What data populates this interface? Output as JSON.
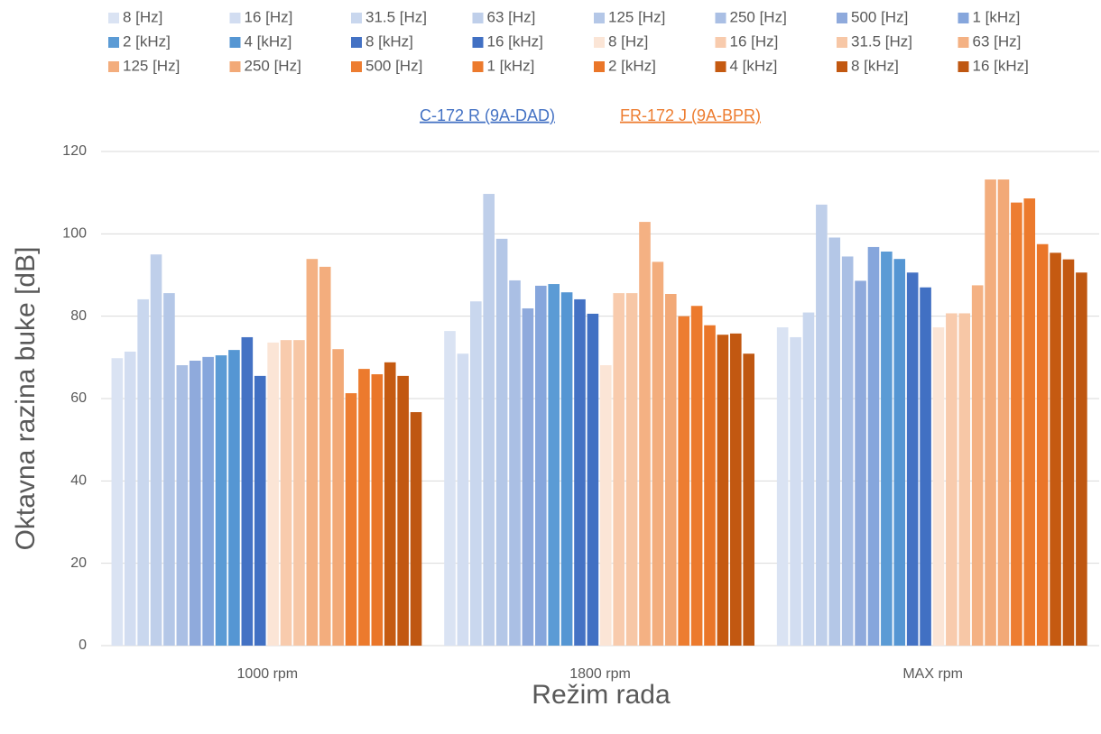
{
  "chart_data": {
    "type": "bar",
    "y_label": "Oktavna razina buke [dB]",
    "x_label": "Režim rada",
    "annotations": [
      {
        "text": "C-172 R (9A-DAD)",
        "color": "#4472c4"
      },
      {
        "text": "FR-172 J (9A-BPR)",
        "color": "#ed7d31"
      }
    ],
    "categories": [
      "1000 rpm",
      "1800 rpm",
      "MAX rpm"
    ],
    "ylim": [
      0,
      120
    ],
    "yticks": [
      0,
      20,
      40,
      60,
      80,
      100,
      120
    ],
    "grid": true,
    "series": [
      {
        "name": "8 [Hz]",
        "color": "#dae3f3",
        "values": [
          69.8,
          76.4,
          77.3
        ]
      },
      {
        "name": "16 [Hz]",
        "color": "#d2ddf1",
        "values": [
          71.4,
          70.9,
          74.9
        ]
      },
      {
        "name": "31.5 [Hz]",
        "color": "#c9d7ee",
        "values": [
          84.1,
          83.6,
          80.9
        ]
      },
      {
        "name": "63 [Hz]",
        "color": "#bfcfea",
        "values": [
          95.0,
          109.7,
          107.1
        ]
      },
      {
        "name": "125 [Hz]",
        "color": "#b4c7e7",
        "values": [
          85.6,
          98.8,
          99.1
        ]
      },
      {
        "name": "250 [Hz]",
        "color": "#aabfe4",
        "values": [
          68.1,
          88.7,
          94.5
        ]
      },
      {
        "name": "500 [Hz]",
        "color": "#8faadc",
        "values": [
          69.2,
          81.9,
          88.6
        ]
      },
      {
        "name": "1 [kHz]",
        "color": "#86a6dc",
        "values": [
          70.1,
          87.4,
          96.8
        ]
      },
      {
        "name": "2 [kHz]",
        "color": "#5b9bd5",
        "values": [
          70.5,
          87.8,
          95.7
        ]
      },
      {
        "name": "4 [kHz]",
        "color": "#5596d3",
        "values": [
          71.8,
          85.8,
          93.9
        ]
      },
      {
        "name": "8 [kHz]",
        "color": "#4472c4",
        "values": [
          74.9,
          84.1,
          90.6
        ]
      },
      {
        "name": "16 [kHz]",
        "color": "#4170c3",
        "values": [
          65.5,
          80.6,
          87.0
        ]
      },
      {
        "name": "8 [Hz]",
        "color": "#fbe5d6",
        "values": [
          73.6,
          68.1,
          77.3
        ]
      },
      {
        "name": "16 [Hz]",
        "color": "#f8cbad",
        "values": [
          74.2,
          85.6,
          80.7
        ]
      },
      {
        "name": "31.5 [Hz]",
        "color": "#f7c7a6",
        "values": [
          74.2,
          85.6,
          80.7
        ]
      },
      {
        "name": "63 [Hz]",
        "color": "#f4b183",
        "values": [
          93.9,
          102.9,
          87.5
        ]
      },
      {
        "name": "125 [Hz]",
        "color": "#f3ad7d",
        "values": [
          92.0,
          93.2,
          113.2
        ]
      },
      {
        "name": "250 [Hz]",
        "color": "#f2a977",
        "values": [
          72.0,
          85.4,
          113.2
        ]
      },
      {
        "name": "500 [Hz]",
        "color": "#ed7d31",
        "values": [
          61.3,
          80.0,
          107.6
        ]
      },
      {
        "name": "1 [kHz]",
        "color": "#ec7a2d",
        "values": [
          67.2,
          82.5,
          108.6
        ]
      },
      {
        "name": "2 [kHz]",
        "color": "#ea7629",
        "values": [
          65.9,
          77.8,
          97.5
        ]
      },
      {
        "name": "4 [kHz]",
        "color": "#c55a11",
        "values": [
          68.8,
          75.5,
          95.4
        ]
      },
      {
        "name": "8 [kHz]",
        "color": "#c25811",
        "values": [
          65.5,
          75.8,
          93.8
        ]
      },
      {
        "name": "16 [kHz]",
        "color": "#bf5711",
        "values": [
          56.7,
          70.9,
          90.6
        ]
      }
    ]
  }
}
